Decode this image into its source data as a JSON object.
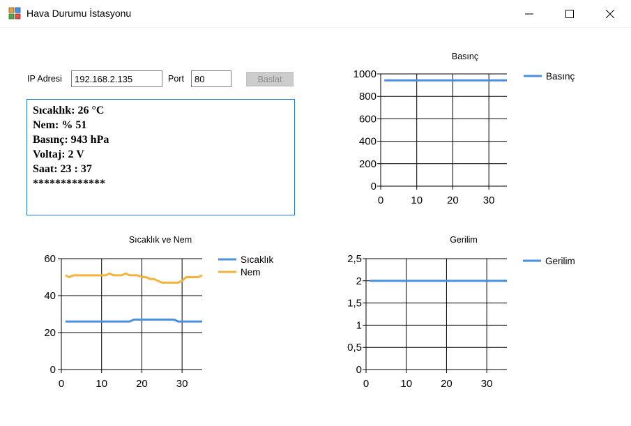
{
  "window": {
    "title": "Hava Durumu İstasyonu",
    "icon": "weather-app-icon",
    "controls": [
      "minimize-icon",
      "maximize-icon",
      "close-icon"
    ]
  },
  "connection": {
    "ip_label": "IP Adresi",
    "ip_value": "192.168.2.135",
    "port_label": "Port",
    "port_value": "80",
    "start_button": "Baslat"
  },
  "log": {
    "lines": [
      "Sıcaklık: 26 °C",
      "Nem: % 51",
      "Basınç: 943 hPa",
      "Voltaj: 2 V",
      "Saat: 23 : 37",
      "*************"
    ]
  },
  "colors": {
    "blue": "#4a8fe0",
    "orange": "#f5b33c",
    "accent_border": "#1e7ad6"
  },
  "chart_data": [
    {
      "id": "basinc",
      "type": "line",
      "title": "Basınç",
      "xlim": [
        0,
        35
      ],
      "ylim": [
        0,
        1000
      ],
      "xticks": [
        "0",
        "10",
        "20",
        "30"
      ],
      "yticks": [
        "0",
        "200",
        "400",
        "600",
        "800",
        "1000"
      ],
      "grid": true,
      "legend_position": "top-right",
      "series": [
        {
          "name": "Basınç",
          "color": "#4a8fe0",
          "x": [
            1,
            5,
            10,
            15,
            20,
            25,
            30,
            35
          ],
          "y": [
            943,
            943,
            943,
            943,
            943,
            943,
            943,
            943
          ]
        }
      ]
    },
    {
      "id": "sicaklik-nem",
      "type": "line",
      "title": "Sıcaklık ve Nem",
      "xlim": [
        0,
        35
      ],
      "ylim": [
        0,
        60
      ],
      "xticks": [
        "0",
        "10",
        "20",
        "30"
      ],
      "yticks": [
        "0",
        "20",
        "40",
        "60"
      ],
      "grid": true,
      "legend_position": "top-right",
      "series": [
        {
          "name": "Sıcaklık",
          "color": "#4a8fe0",
          "x": [
            1,
            17,
            18,
            28,
            29,
            35
          ],
          "y": [
            26,
            26,
            27,
            27,
            26,
            26
          ]
        },
        {
          "name": "Nem",
          "color": "#f5b33c",
          "x": [
            1,
            2,
            3,
            5,
            8,
            9,
            10,
            11,
            12,
            13,
            14,
            15,
            16,
            17,
            18,
            19,
            20,
            21,
            22,
            23,
            24,
            25,
            26,
            27,
            28,
            29,
            30,
            31,
            32,
            33,
            34,
            35
          ],
          "y": [
            51,
            50,
            51,
            51,
            51,
            51,
            51,
            51,
            52,
            51,
            51,
            51,
            52,
            51,
            51,
            51,
            50,
            50,
            49,
            49,
            48,
            47,
            47,
            47,
            47,
            47,
            48,
            50,
            50,
            50,
            50,
            51
          ]
        }
      ]
    },
    {
      "id": "gerilim",
      "type": "line",
      "title": "Gerilim",
      "xlim": [
        0,
        35
      ],
      "ylim": [
        0,
        2.5
      ],
      "xticks": [
        "0",
        "10",
        "20",
        "30"
      ],
      "yticks": [
        "0",
        "0,5",
        "1",
        "1,5",
        "2",
        "2,5"
      ],
      "grid": true,
      "legend_position": "top-right",
      "series": [
        {
          "name": "Gerilim",
          "color": "#4a8fe0",
          "x": [
            1,
            5,
            10,
            15,
            20,
            25,
            30,
            35
          ],
          "y": [
            2,
            2,
            2,
            2,
            2,
            2,
            2,
            2
          ]
        }
      ]
    }
  ]
}
